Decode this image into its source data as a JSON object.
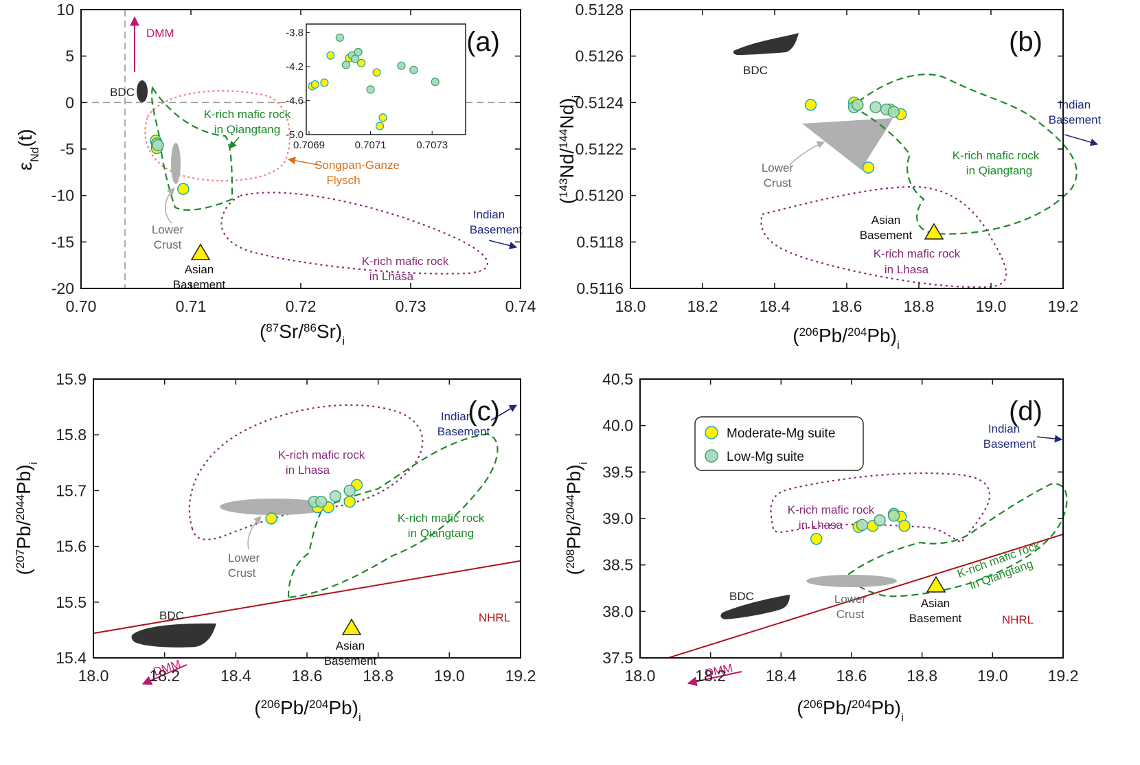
{
  "colors": {
    "yellow": "#fff200",
    "yellow_edge": "#1aa0c8",
    "lowmg": "#a8dcc0",
    "lowmg_edge": "#3aa06a",
    "green": "#1e8a2a",
    "purple": "#8a2a7a",
    "pink": "#f08080",
    "navy": "#1f2a7a",
    "magenta": "#c0166e",
    "orange": "#d9701a",
    "red": "#b0121b",
    "gray": "#b0b0b0",
    "gray_text": "#6a6a6a",
    "dark": "#333333"
  },
  "legend": {
    "moderate_label": "Moderate-Mg suite",
    "low_label": "Low-Mg suite"
  },
  "chart_data": [
    {
      "id": "a",
      "type": "scatter",
      "panel_label": "(a)",
      "xlabel": "(87Sr/86Sr)i",
      "ylabel": "εNd(t)",
      "xlim": [
        0.7,
        0.74
      ],
      "ylim": [
        -20,
        10
      ],
      "xticks": [
        "0.70",
        "0.71",
        "0.72",
        "0.73",
        "0.74"
      ],
      "yticks": [
        "10",
        "5",
        "0",
        "-5",
        "-10",
        "-15",
        "-20"
      ],
      "reference_lines": {
        "x": 0.704,
        "y": 0
      },
      "series": [
        {
          "name": "Moderate-Mg suite",
          "points": [
            [
              0.7068,
              -4.1
            ],
            [
              0.7069,
              -4.9
            ],
            [
              0.7093,
              -9.3
            ]
          ]
        },
        {
          "name": "Low-Mg suite",
          "points": [
            [
              0.7069,
              -4.4
            ],
            [
              0.707,
              -4.6
            ]
          ]
        }
      ],
      "labels": {
        "dmm": "DMM",
        "bdc": "BDC",
        "krich_q1": "K-rich mafic rock",
        "krich_q2": "in Qiangtang",
        "songpan1": "Songpan-Ganze",
        "songpan2": "Flysch",
        "indian1": "Indian",
        "indian2": "Basement",
        "lower1": "Lower",
        "lower2": "Crust",
        "asian1": "Asian",
        "asian2": "Basement",
        "krich_l1": "K-rich mafic rock",
        "krich_l2": "in Lhasa"
      },
      "inset": {
        "xlim": [
          0.7069,
          0.7074
        ],
        "ylim": [
          -5.0,
          -3.7
        ],
        "xticks": [
          "0.7069",
          "0.7071",
          "0.7073"
        ],
        "yticks": [
          "-3.8",
          "-4.2",
          "-4.6",
          "-5.0"
        ],
        "series": [
          {
            "name": "Moderate-Mg suite",
            "points": [
              [
                0.70691,
                -4.43
              ],
              [
                0.70692,
                -4.41
              ],
              [
                0.70695,
                -4.39
              ],
              [
                0.70697,
                -4.07
              ],
              [
                0.70703,
                -4.1
              ],
              [
                0.70707,
                -4.16
              ],
              [
                0.70712,
                -4.27
              ],
              [
                0.70713,
                -4.9
              ],
              [
                0.70714,
                -4.8
              ]
            ]
          },
          {
            "name": "Low-Mg suite",
            "points": [
              [
                0.707,
                -3.86
              ],
              [
                0.70702,
                -4.18
              ],
              [
                0.70704,
                -4.07
              ],
              [
                0.70705,
                -4.11
              ],
              [
                0.70706,
                -4.03
              ],
              [
                0.7071,
                -4.47
              ],
              [
                0.7072,
                -4.19
              ],
              [
                0.70724,
                -4.24
              ],
              [
                0.70731,
                -4.38
              ]
            ]
          }
        ]
      }
    },
    {
      "id": "b",
      "type": "scatter",
      "panel_label": "(b)",
      "xlabel": "(206Pb/204Pb)i",
      "ylabel": "(143Nd/144Nd)i",
      "xlim": [
        18.0,
        19.2
      ],
      "ylim": [
        0.5116,
        0.5128
      ],
      "xticks": [
        "18.0",
        "18.2",
        "18.4",
        "18.6",
        "18.8",
        "19.0",
        "19.2"
      ],
      "yticks": [
        "0.5128",
        "0.5126",
        "0.5124",
        "0.5122",
        "0.5120",
        "0.5118",
        "0.5116"
      ],
      "series": [
        {
          "name": "Moderate-Mg suite",
          "points": [
            [
              18.5,
              0.51239
            ],
            [
              18.62,
              0.5124
            ],
            [
              18.63,
              0.51239
            ],
            [
              18.72,
              0.51237
            ],
            [
              18.75,
              0.51235
            ],
            [
              18.66,
              0.51212
            ]
          ]
        },
        {
          "name": "Low-Mg suite",
          "points": [
            [
              18.62,
              0.51238
            ],
            [
              18.63,
              0.51239
            ],
            [
              18.68,
              0.51238
            ],
            [
              18.71,
              0.51237
            ],
            [
              18.73,
              0.51236
            ]
          ]
        }
      ],
      "labels": {
        "bdc": "BDC",
        "indian1": "Indian",
        "indian2": "Basement",
        "krich_q1": "K-rich mafic rock",
        "krich_q2": "in Qiangtang",
        "lower1": "Lower",
        "lower2": "Crust",
        "asian1": "Asian",
        "asian2": "Basement",
        "krich_l1": "K-rich mafic rock",
        "krich_l2": "in Lhasa"
      }
    },
    {
      "id": "c",
      "type": "scatter",
      "panel_label": "(c)",
      "xlabel": "(206Pb/204Pb)i",
      "ylabel": "(207Pb/2044Pb)i",
      "xlim": [
        18.0,
        19.2
      ],
      "ylim": [
        15.4,
        15.9
      ],
      "xticks": [
        "18.0",
        "18.2",
        "18.4",
        "18.6",
        "18.8",
        "19.0",
        "19.2"
      ],
      "yticks": [
        "15.9",
        "15.8",
        "15.7",
        "15.6",
        "15.5",
        "15.4"
      ],
      "nhrl": [
        [
          18.0,
          15.444
        ],
        [
          19.2,
          15.574
        ]
      ],
      "series": [
        {
          "name": "Moderate-Mg suite",
          "points": [
            [
              18.5,
              15.65
            ],
            [
              18.63,
              15.67
            ],
            [
              18.66,
              15.67
            ],
            [
              18.72,
              15.68
            ],
            [
              18.74,
              15.71
            ]
          ]
        },
        {
          "name": "Low-Mg suite",
          "points": [
            [
              18.62,
              15.68
            ],
            [
              18.64,
              15.68
            ],
            [
              18.68,
              15.69
            ],
            [
              18.72,
              15.7
            ]
          ]
        }
      ],
      "labels": {
        "indian1": "Indian",
        "indian2": "Basement",
        "krich_l1": "K-rich mafic rock",
        "krich_l2": "in Lhasa",
        "krich_q1": "K-rich mafic rock",
        "krich_q2": "in Qiangtang",
        "lower1": "Lower",
        "lower2": "Crust",
        "bdc": "BDC",
        "nhrl": "NHRL",
        "asian1": "Asian",
        "asian2": "Basement",
        "dmm": "DMM"
      }
    },
    {
      "id": "d",
      "type": "scatter",
      "panel_label": "(d)",
      "xlabel": "(206Pb/204Pb)i",
      "ylabel": "(208Pb/2044Pb)i",
      "xlim": [
        18.0,
        19.2
      ],
      "ylim": [
        37.5,
        40.5
      ],
      "xticks": [
        "18.0",
        "18.2",
        "18.4",
        "18.6",
        "18.8",
        "19.0",
        "19.2"
      ],
      "yticks": [
        "40.5",
        "40.0",
        "39.5",
        "39.0",
        "38.5",
        "38.0",
        "37.5"
      ],
      "nhrl": [
        [
          18.08,
          37.5
        ],
        [
          19.2,
          38.83
        ]
      ],
      "series": [
        {
          "name": "Moderate-Mg suite",
          "points": [
            [
              18.5,
              38.78
            ],
            [
              18.62,
              38.91
            ],
            [
              18.66,
              38.92
            ],
            [
              18.72,
              39.05
            ],
            [
              18.74,
              39.02
            ],
            [
              18.75,
              38.92
            ]
          ]
        },
        {
          "name": "Low-Mg suite",
          "points": [
            [
              18.63,
              38.93
            ],
            [
              18.68,
              38.98
            ],
            [
              18.72,
              39.03
            ]
          ]
        }
      ],
      "labels": {
        "indian1": "Indian",
        "indian2": "Basement",
        "krich_l1": "K-rich mafic rock",
        "krich_l2": "in Lhasa",
        "krich_q1": "K-rich mafic rock",
        "krich_q2": "in Qiangtang",
        "bdc": "BDC",
        "lower1": "Lower",
        "lower2": "Crust",
        "asian1": "Asian",
        "asian2": "Basement",
        "nhrl": "NHRL",
        "dmm": "DMM"
      }
    }
  ]
}
